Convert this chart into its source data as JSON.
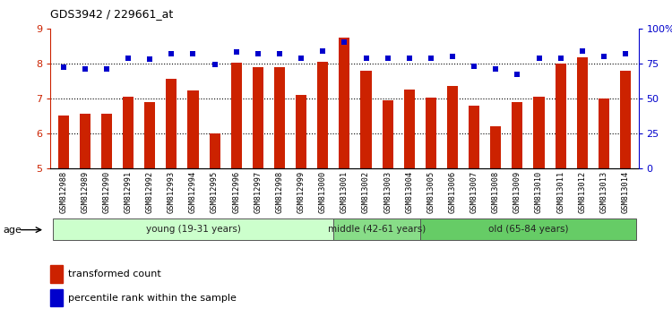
{
  "title": "GDS3942 / 229661_at",
  "categories": [
    "GSM812988",
    "GSM812989",
    "GSM812990",
    "GSM812991",
    "GSM812992",
    "GSM812993",
    "GSM812994",
    "GSM812995",
    "GSM812996",
    "GSM812997",
    "GSM812998",
    "GSM812999",
    "GSM813000",
    "GSM813001",
    "GSM813002",
    "GSM813003",
    "GSM813004",
    "GSM813005",
    "GSM813006",
    "GSM813007",
    "GSM813008",
    "GSM813009",
    "GSM813010",
    "GSM813011",
    "GSM813012",
    "GSM813013",
    "GSM813014"
  ],
  "bar_values": [
    6.5,
    6.55,
    6.55,
    7.05,
    6.88,
    7.55,
    7.22,
    5.98,
    8.02,
    7.9,
    7.9,
    7.1,
    8.05,
    8.75,
    7.78,
    6.95,
    7.25,
    7.03,
    7.35,
    6.78,
    6.2,
    6.9,
    7.05,
    8.0,
    8.18,
    7.0,
    7.78
  ],
  "percentile_values": [
    72,
    71,
    71,
    79,
    78,
    82,
    82,
    74,
    83,
    82,
    82,
    79,
    84,
    90,
    79,
    79,
    79,
    79,
    80,
    73,
    71,
    67,
    79,
    79,
    84,
    80,
    82
  ],
  "groups": [
    {
      "label": "young (19-31 years)",
      "start": 0,
      "end": 13,
      "color": "#ccffcc"
    },
    {
      "label": "middle (42-61 years)",
      "start": 13,
      "end": 17,
      "color": "#88dd88"
    },
    {
      "label": "old (65-84 years)",
      "start": 17,
      "end": 27,
      "color": "#66cc66"
    }
  ],
  "bar_color": "#cc2200",
  "scatter_color": "#0000cc",
  "ylim_left": [
    5,
    9
  ],
  "ylim_right": [
    0,
    100
  ],
  "yticks_left": [
    5,
    6,
    7,
    8,
    9
  ],
  "yticks_right": [
    0,
    25,
    50,
    75,
    100
  ],
  "ytick_labels_right": [
    "0",
    "25",
    "50",
    "75",
    "100%"
  ],
  "legend_items": [
    {
      "label": "transformed count",
      "color": "#cc2200"
    },
    {
      "label": "percentile rank within the sample",
      "color": "#0000cc"
    }
  ]
}
